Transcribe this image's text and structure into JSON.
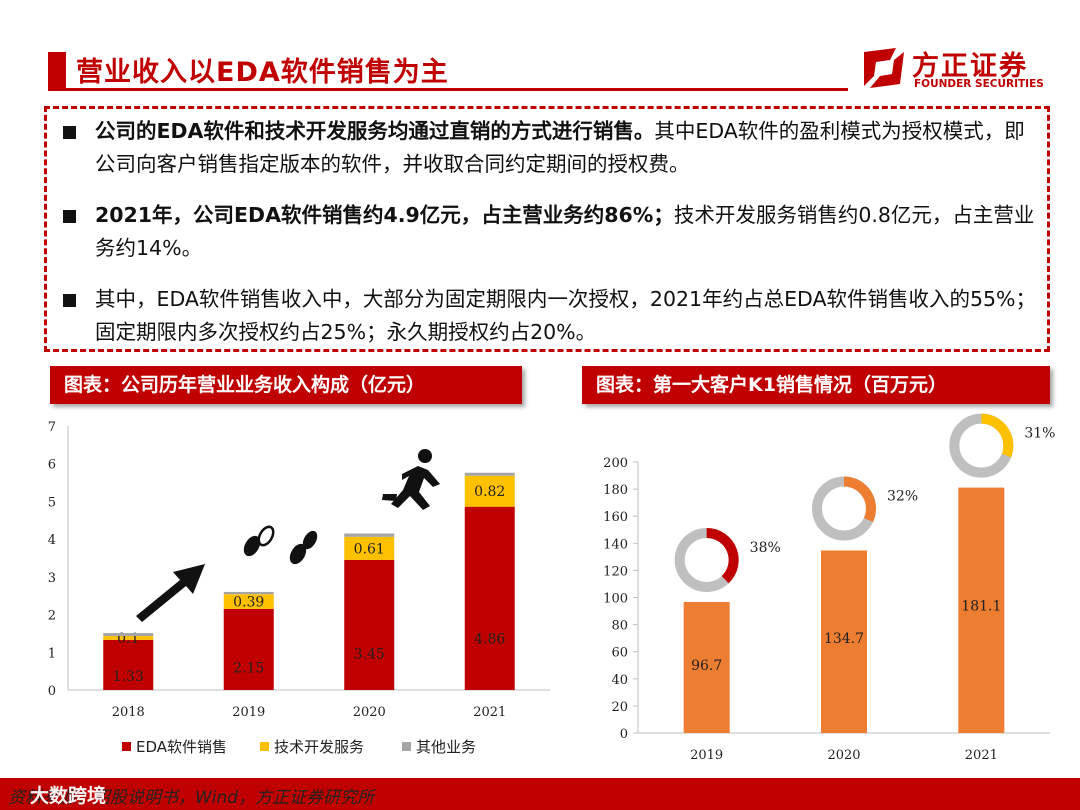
{
  "header": {
    "title": "营业收入以EDA软件销售为主",
    "logo_name": "方正证券",
    "logo_en": "FOUNDER SECURITIES"
  },
  "bullets": [
    {
      "bold": "公司的EDA软件和技术开发服务均通过直销的方式进行销售。",
      "text": "其中EDA软件的盈利模式为授权模式，即公司向客户销售指定版本的软件，并收取合同约定期间的授权费。"
    },
    {
      "bold": "2021年，公司EDA软件销售约4.9亿元，占主营业务约86%；",
      "text": "技术开发服务销售约0.8亿元，占主营业务约14%。"
    },
    {
      "bold": "",
      "text": "其中，EDA软件销售收入中，大部分为固定期限内一次授权，2021年约占总EDA软件销售收入的55%；固定期限内多次授权约占25%；永久期授权约占20%。"
    }
  ],
  "left_panel": {
    "title": "图表：公司历年营业业务收入构成（亿元）"
  },
  "right_panel": {
    "title": "图表：第一大客户K1销售情况（百万元）"
  },
  "chart_data": [
    {
      "type": "bar",
      "stacked": true,
      "categories": [
        "2018",
        "2019",
        "2020",
        "2021"
      ],
      "series": [
        {
          "name": "EDA软件销售",
          "values": [
            1.33,
            2.15,
            3.45,
            4.86
          ],
          "color": "#c00000"
        },
        {
          "name": "技术开发服务",
          "values": [
            0.1,
            0.39,
            0.61,
            0.82
          ],
          "color": "#ffc000"
        },
        {
          "name": "其他业务",
          "values": [
            0.08,
            0.06,
            0.09,
            0.08
          ],
          "color": "#a5a5a5"
        }
      ],
      "data_labels": [
        [
          "1.33",
          "2.15",
          "3.45",
          "4.86"
        ],
        [
          "0.1",
          "0.39",
          "0.61",
          "0.82"
        ]
      ],
      "ylim": [
        0,
        7
      ],
      "yticks": [
        "0",
        "1",
        "2",
        "3",
        "4",
        "5",
        "6",
        "7"
      ],
      "legend": "bottom",
      "grid": false
    },
    {
      "type": "bar",
      "categories": [
        "2019",
        "2020",
        "2021"
      ],
      "values": [
        96.7,
        134.7,
        181.1
      ],
      "labels": [
        "96.7",
        "134.7",
        "181.1"
      ],
      "color": "#ed7d31",
      "ylim": [
        0,
        200
      ],
      "yticks": [
        "0",
        "20",
        "40",
        "60",
        "80",
        "100",
        "120",
        "140",
        "160",
        "180",
        "200"
      ],
      "donut_shares": [
        38,
        32,
        31
      ],
      "donut_labels": [
        "38%",
        "32%",
        "31%"
      ],
      "donut_colors": [
        "#c00000",
        "#ed7d31",
        "#ffc000"
      ],
      "grid": false
    }
  ],
  "footer": {
    "source": "资料来源：招股说明书，Wind，方正证券研究所",
    "watermark": "大数跨境"
  }
}
